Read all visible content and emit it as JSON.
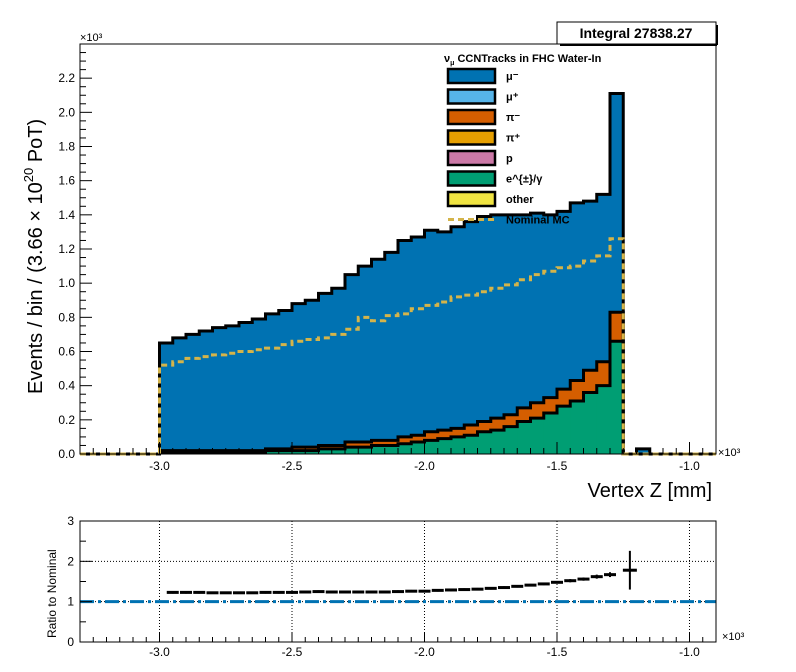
{
  "integral_box": {
    "label": "Integral 27838.27"
  },
  "chart_data": [
    {
      "type": "stacked-histogram",
      "title": "",
      "xlabel": "Vertex Z [mm]",
      "ylabel": "Events / bin / (3.66 × 10^20 PoT)",
      "ylabel_parts": {
        "main": "Events / bin / (3.66  × 10",
        "exp": "20",
        "tail": " PoT)"
      },
      "x_multiplier": "×10³",
      "y_multiplier": "×10³",
      "xlim": [
        -3.3,
        -0.9
      ],
      "ylim": [
        0,
        2.4
      ],
      "x_ticks": [
        "-3.0",
        "-2.5",
        "-2.0",
        "-1.5",
        "-1.0"
      ],
      "x_tick_values": [
        -3.0,
        -2.5,
        -2.0,
        -1.5,
        -1.0
      ],
      "y_ticks": [
        "0.0",
        "0.2",
        "0.4",
        "0.6",
        "0.8",
        "1.0",
        "1.2",
        "1.4",
        "1.6",
        "1.8",
        "2.0",
        "2.2"
      ],
      "y_tick_values": [
        0.0,
        0.2,
        0.4,
        0.6,
        0.8,
        1.0,
        1.2,
        1.4,
        1.6,
        1.8,
        2.0,
        2.2
      ],
      "grid": false,
      "legend_position": "top-right",
      "legend_title": "ν_μ CCNTracks in FHC Water-In",
      "legend_title_parts": {
        "nu": "ν",
        "mu": "μ",
        "rest": " CCNTracks in FHC Water-In"
      },
      "bin_edges": [
        -3.3,
        -3.25,
        -3.2,
        -3.15,
        -3.1,
        -3.05,
        -3.0,
        -2.95,
        -2.9,
        -2.85,
        -2.8,
        -2.75,
        -2.7,
        -2.65,
        -2.6,
        -2.55,
        -2.5,
        -2.45,
        -2.4,
        -2.35,
        -2.3,
        -2.25,
        -2.2,
        -2.15,
        -2.1,
        -2.05,
        -2.0,
        -1.95,
        -1.9,
        -1.85,
        -1.8,
        -1.75,
        -1.7,
        -1.65,
        -1.6,
        -1.55,
        -1.5,
        -1.45,
        -1.4,
        -1.35,
        -1.3,
        -1.25,
        -1.2,
        -1.15,
        -1.1,
        -1.05,
        -1.0,
        -0.95,
        -0.9
      ],
      "series": [
        {
          "name": "μ⁻",
          "color": "#0072b2",
          "values": [
            0,
            0,
            0,
            0,
            0,
            0,
            0.63,
            0.66,
            0.68,
            0.7,
            0.72,
            0.73,
            0.75,
            0.77,
            0.79,
            0.81,
            0.84,
            0.86,
            0.89,
            0.92,
            0.98,
            1.03,
            1.06,
            1.1,
            1.15,
            1.16,
            1.18,
            1.16,
            1.18,
            1.19,
            1.2,
            1.19,
            1.17,
            1.13,
            1.11,
            1.07,
            1.04,
            1.04,
            0.99,
            0.98,
            1.28,
            0,
            0.03,
            0,
            0,
            0,
            0,
            0
          ]
        },
        {
          "name": "μ⁺",
          "color": "#56b4e9",
          "values": [
            0,
            0,
            0,
            0,
            0,
            0,
            0,
            0,
            0,
            0,
            0,
            0,
            0,
            0,
            0,
            0,
            0,
            0,
            0,
            0,
            0,
            0,
            0,
            0,
            0,
            0,
            0,
            0,
            0,
            0,
            0,
            0,
            0,
            0,
            0,
            0,
            0,
            0,
            0,
            0,
            0,
            0,
            0,
            0,
            0,
            0,
            0,
            0
          ]
        },
        {
          "name": "π⁻",
          "color": "#d55e00",
          "values": [
            0,
            0,
            0,
            0,
            0,
            0,
            0.01,
            0.01,
            0.01,
            0.01,
            0.01,
            0.01,
            0.01,
            0.01,
            0.01,
            0.01,
            0.02,
            0.02,
            0.02,
            0.02,
            0.03,
            0.03,
            0.03,
            0.03,
            0.04,
            0.04,
            0.05,
            0.05,
            0.05,
            0.06,
            0.06,
            0.07,
            0.07,
            0.08,
            0.09,
            0.09,
            0.1,
            0.12,
            0.13,
            0.14,
            0.17,
            0,
            0,
            0,
            0,
            0,
            0,
            0
          ]
        },
        {
          "name": "π⁺",
          "color": "#e69f00",
          "values": [
            0,
            0,
            0,
            0,
            0,
            0,
            0,
            0,
            0,
            0,
            0,
            0,
            0,
            0,
            0,
            0,
            0,
            0,
            0,
            0,
            0,
            0,
            0,
            0,
            0,
            0,
            0,
            0,
            0,
            0,
            0,
            0,
            0,
            0,
            0,
            0,
            0,
            0,
            0,
            0,
            0,
            0,
            0,
            0,
            0,
            0,
            0,
            0
          ]
        },
        {
          "name": "p",
          "color": "#cc79a7",
          "values": [
            0,
            0,
            0,
            0,
            0,
            0,
            0,
            0,
            0,
            0,
            0,
            0,
            0,
            0,
            0,
            0,
            0,
            0,
            0,
            0,
            0,
            0,
            0,
            0,
            0,
            0,
            0,
            0,
            0,
            0,
            0,
            0,
            0,
            0,
            0,
            0,
            0,
            0,
            0,
            0,
            0,
            0,
            0,
            0,
            0,
            0,
            0,
            0
          ]
        },
        {
          "name": "e^{±}/γ",
          "color": "#009e73",
          "values": [
            0,
            0,
            0,
            0,
            0,
            0,
            0.01,
            0.01,
            0.01,
            0.01,
            0.01,
            0.01,
            0.01,
            0.01,
            0.02,
            0.02,
            0.02,
            0.02,
            0.03,
            0.03,
            0.04,
            0.04,
            0.05,
            0.05,
            0.06,
            0.07,
            0.08,
            0.09,
            0.1,
            0.11,
            0.13,
            0.14,
            0.16,
            0.19,
            0.21,
            0.24,
            0.28,
            0.31,
            0.36,
            0.4,
            0.66,
            0,
            0,
            0,
            0,
            0,
            0,
            0
          ]
        },
        {
          "name": "other",
          "color": "#f0e442",
          "values": [
            0,
            0,
            0,
            0,
            0,
            0,
            0,
            0,
            0,
            0,
            0,
            0,
            0,
            0,
            0,
            0,
            0,
            0,
            0,
            0,
            0,
            0,
            0,
            0,
            0,
            0,
            0,
            0,
            0,
            0,
            0,
            0,
            0,
            0,
            0,
            0,
            0,
            0,
            0,
            0,
            0,
            0,
            0,
            0,
            0,
            0,
            0,
            0
          ]
        }
      ],
      "nominal": {
        "name": "Nominal MC",
        "color": "#d4b44a",
        "values": [
          0,
          0,
          0,
          0,
          0,
          0,
          0.52,
          0.54,
          0.56,
          0.57,
          0.58,
          0.59,
          0.6,
          0.61,
          0.62,
          0.64,
          0.66,
          0.67,
          0.68,
          0.7,
          0.73,
          0.8,
          0.78,
          0.81,
          0.82,
          0.85,
          0.87,
          0.89,
          0.92,
          0.93,
          0.95,
          0.97,
          0.99,
          1.02,
          1.05,
          1.07,
          1.09,
          1.1,
          1.13,
          1.16,
          1.26,
          0,
          0,
          0,
          0,
          0,
          0,
          0
        ]
      }
    },
    {
      "type": "ratio",
      "ylabel": "Ratio to Nominal",
      "x_multiplier": "×10³",
      "xlim": [
        -3.3,
        -0.9
      ],
      "ylim": [
        0,
        3
      ],
      "y_ticks": [
        "0",
        "1",
        "2",
        "3"
      ],
      "y_tick_values": [
        0,
        1,
        2,
        3
      ],
      "x_ticks": [
        "-3.0",
        "-2.5",
        "-2.0",
        "-1.5",
        "-1.0"
      ],
      "x_tick_values": [
        -3.0,
        -2.5,
        -2.0,
        -1.5,
        -1.0
      ],
      "grid": true,
      "reference_line": {
        "y": 1,
        "color": "#0072b2"
      },
      "x": [
        -2.95,
        -2.9,
        -2.85,
        -2.8,
        -2.75,
        -2.7,
        -2.65,
        -2.6,
        -2.55,
        -2.5,
        -2.45,
        -2.4,
        -2.35,
        -2.3,
        -2.25,
        -2.2,
        -2.15,
        -2.1,
        -2.05,
        -2.0,
        -1.95,
        -1.9,
        -1.85,
        -1.8,
        -1.75,
        -1.7,
        -1.65,
        -1.6,
        -1.55,
        -1.5,
        -1.45,
        -1.4,
        -1.35,
        -1.3,
        -1.225
      ],
      "values": [
        1.23,
        1.23,
        1.23,
        1.22,
        1.22,
        1.22,
        1.22,
        1.23,
        1.23,
        1.23,
        1.24,
        1.25,
        1.24,
        1.24,
        1.24,
        1.24,
        1.24,
        1.25,
        1.26,
        1.26,
        1.28,
        1.29,
        1.3,
        1.31,
        1.33,
        1.35,
        1.38,
        1.41,
        1.44,
        1.48,
        1.52,
        1.56,
        1.62,
        1.67,
        1.78
      ],
      "errors": [
        0.03,
        0.03,
        0.03,
        0.03,
        0.03,
        0.03,
        0.03,
        0.03,
        0.03,
        0.03,
        0.03,
        0.03,
        0.03,
        0.03,
        0.03,
        0.03,
        0.03,
        0.03,
        0.03,
        0.03,
        0.03,
        0.03,
        0.03,
        0.03,
        0.03,
        0.03,
        0.03,
        0.03,
        0.03,
        0.03,
        0.04,
        0.04,
        0.05,
        0.06,
        0.48
      ]
    }
  ]
}
